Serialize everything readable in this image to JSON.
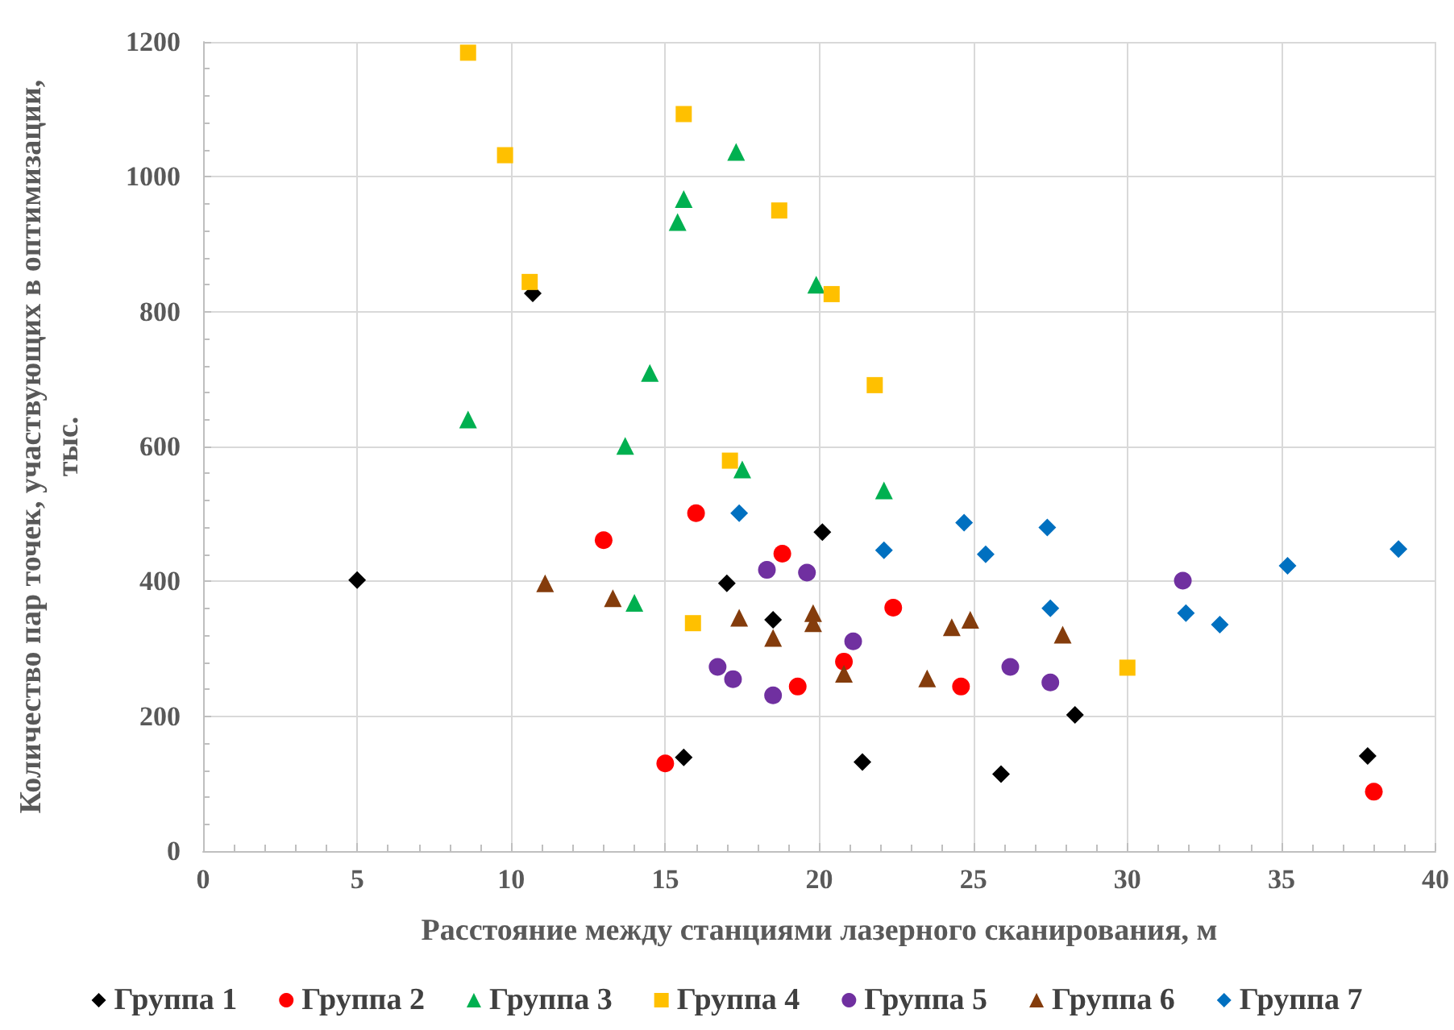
{
  "chart_data": {
    "type": "scatter",
    "xlabel": "Расстояние между станциями лазерного сканирования, м",
    "ylabel": "Количество пар точек, участвующих в оптимизации, тыс.",
    "xlim": [
      0,
      40
    ],
    "xticks": [
      0,
      5,
      10,
      15,
      20,
      25,
      30,
      35,
      40
    ],
    "ylim": [
      0,
      1200
    ],
    "yticks": [
      0,
      200,
      400,
      600,
      800,
      1000,
      1200
    ],
    "grid": true,
    "legend": "bottom",
    "series": [
      {
        "name": "Группа 1",
        "color": "#000000",
        "marker": "diamond",
        "x": [
          5.0,
          10.7,
          15.6,
          17.0,
          18.5,
          20.1,
          21.4,
          25.9,
          28.3,
          37.8
        ],
        "values": [
          402,
          827,
          139,
          397,
          343,
          473,
          132,
          114,
          202,
          141
        ]
      },
      {
        "name": "Группа 2",
        "color": "#ff0000",
        "marker": "circle",
        "x": [
          13.0,
          15.0,
          16.0,
          18.8,
          19.3,
          20.8,
          22.4,
          24.6,
          38.0
        ],
        "values": [
          461,
          130,
          501,
          441,
          244,
          281,
          361,
          244,
          88
        ]
      },
      {
        "name": "Группа 3",
        "color": "#00b050",
        "marker": "triangle",
        "x": [
          8.6,
          13.7,
          14.0,
          14.5,
          15.4,
          15.6,
          17.3,
          17.5,
          19.9,
          22.1
        ],
        "values": [
          640,
          601,
          368,
          709,
          933,
          967,
          1037,
          566,
          840,
          535
        ]
      },
      {
        "name": "Группа 4",
        "color": "#ffc000",
        "marker": "square",
        "x": [
          8.6,
          9.8,
          10.6,
          15.6,
          15.9,
          17.1,
          18.7,
          20.4,
          21.8,
          30.0
        ],
        "values": [
          1184,
          1032,
          844,
          1093,
          338,
          579,
          950,
          826,
          691,
          272
        ]
      },
      {
        "name": "Группа 5",
        "color": "#7030a0",
        "marker": "circle",
        "x": [
          16.7,
          17.2,
          18.3,
          18.5,
          19.6,
          21.1,
          26.2,
          27.5,
          31.8
        ],
        "values": [
          273,
          255,
          417,
          231,
          413,
          311,
          273,
          250,
          401
        ]
      },
      {
        "name": "Группа 6",
        "color": "#843c0c",
        "marker": "triangle",
        "x": [
          11.1,
          13.3,
          17.4,
          18.5,
          19.8,
          19.8,
          20.8,
          23.5,
          24.3,
          24.9,
          27.9
        ],
        "values": [
          397,
          375,
          346,
          316,
          353,
          338,
          263,
          256,
          332,
          343,
          321
        ]
      },
      {
        "name": "Группа 7",
        "color": "#0070c0",
        "marker": "diamond",
        "x": [
          17.4,
          22.1,
          24.7,
          25.4,
          27.4,
          27.5,
          31.9,
          33.0,
          35.2,
          38.8
        ],
        "values": [
          501,
          446,
          487,
          440,
          480,
          360,
          353,
          336,
          423,
          448
        ]
      }
    ]
  }
}
